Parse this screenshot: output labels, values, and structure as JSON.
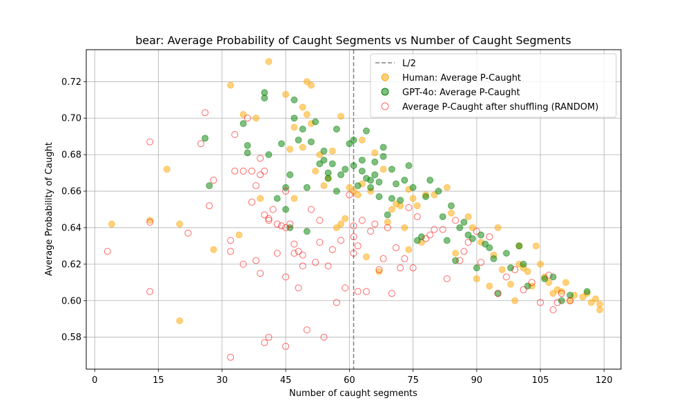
{
  "chart_data": {
    "type": "scatter",
    "title": "bear: Average Probability of Caught Segments vs Number of Caught Segments",
    "xlabel": "Number of caught segments",
    "ylabel": "Average Probability of Caught",
    "xlim": [
      -2,
      124
    ],
    "ylim": [
      0.5625,
      0.7375
    ],
    "xticks": [
      0,
      15,
      30,
      45,
      60,
      75,
      90,
      105,
      120
    ],
    "yticks": [
      0.58,
      0.6,
      0.62,
      0.64,
      0.66,
      0.68,
      0.7,
      0.72
    ],
    "grid": true,
    "legend_position": "top-right",
    "vline": {
      "x": 61,
      "label": "L/2",
      "color": "#808080",
      "style": "dashed"
    },
    "series": [
      {
        "name": "Human: Average P-Caught",
        "color": "#FFA500",
        "marker": "filled-circle",
        "x": [
          4,
          13,
          17,
          20,
          20,
          28,
          32,
          34,
          35,
          38,
          39,
          41,
          45,
          46,
          47,
          47,
          49,
          49,
          50,
          50,
          51,
          51,
          52,
          53,
          54,
          55,
          56,
          57,
          58,
          58,
          59,
          60,
          61,
          62,
          63,
          63,
          64,
          65,
          66,
          67,
          68,
          69,
          70,
          71,
          72,
          73,
          74,
          74,
          75,
          76,
          77,
          78,
          80,
          83,
          84,
          85,
          88,
          89,
          90,
          91,
          93,
          94,
          95,
          96,
          98,
          99,
          100,
          100,
          101,
          102,
          103,
          104,
          105,
          106,
          107,
          108,
          109,
          110,
          111,
          112,
          113,
          115,
          116,
          117,
          118,
          119,
          119
        ],
        "y": [
          0.642,
          0.644,
          0.672,
          0.642,
          0.589,
          0.628,
          0.718,
          0.636,
          0.702,
          0.7,
          0.656,
          0.731,
          0.713,
          0.683,
          0.695,
          0.656,
          0.706,
          0.684,
          0.72,
          0.702,
          0.718,
          0.697,
          0.671,
          0.68,
          0.663,
          0.667,
          0.682,
          0.64,
          0.642,
          0.701,
          0.645,
          0.662,
          0.66,
          0.658,
          0.664,
          0.688,
          0.624,
          0.66,
          0.681,
          0.616,
          0.672,
          0.643,
          0.65,
          0.653,
          0.652,
          0.64,
          0.628,
          0.661,
          0.656,
          0.652,
          0.632,
          0.658,
          0.658,
          0.662,
          0.648,
          0.626,
          0.646,
          0.64,
          0.612,
          0.632,
          0.608,
          0.625,
          0.64,
          0.617,
          0.609,
          0.6,
          0.63,
          0.62,
          0.618,
          0.616,
          0.608,
          0.63,
          0.62,
          0.613,
          0.61,
          0.604,
          0.606,
          0.605,
          0.61,
          0.6,
          0.603,
          0.602,
          0.604,
          0.599,
          0.601,
          0.598,
          0.595
        ]
      },
      {
        "name": "GPT-4o: Average P-Caught",
        "color": "#008000",
        "marker": "filled-circle",
        "x": [
          26,
          27,
          35,
          36,
          36,
          40,
          40,
          41,
          43,
          44,
          45,
          45,
          46,
          46,
          47,
          47,
          48,
          49,
          50,
          50,
          51,
          52,
          53,
          54,
          54,
          55,
          55,
          56,
          57,
          57,
          58,
          59,
          60,
          61,
          61,
          62,
          63,
          63,
          64,
          64,
          65,
          65,
          66,
          66,
          67,
          67,
          68,
          68,
          69,
          70,
          70,
          71,
          72,
          73,
          74,
          75,
          76,
          77,
          78,
          79,
          81,
          82,
          83,
          84,
          85,
          86,
          87,
          88,
          89,
          90,
          91,
          92,
          93,
          94,
          95,
          97,
          98,
          100,
          101,
          102,
          106,
          108,
          110,
          112,
          116
        ],
        "y": [
          0.689,
          0.663,
          0.697,
          0.685,
          0.681,
          0.714,
          0.711,
          0.68,
          0.656,
          0.686,
          0.662,
          0.65,
          0.669,
          0.64,
          0.7,
          0.71,
          0.688,
          0.694,
          0.662,
          0.638,
          0.687,
          0.698,
          0.675,
          0.682,
          0.677,
          0.67,
          0.667,
          0.675,
          0.694,
          0.66,
          0.669,
          0.672,
          0.686,
          0.688,
          0.674,
          0.663,
          0.677,
          0.671,
          0.667,
          0.693,
          0.666,
          0.662,
          0.669,
          0.676,
          0.657,
          0.665,
          0.684,
          0.679,
          0.647,
          0.672,
          0.656,
          0.664,
          0.655,
          0.666,
          0.674,
          0.662,
          0.633,
          0.635,
          0.657,
          0.666,
          0.66,
          0.646,
          0.633,
          0.652,
          0.622,
          0.64,
          0.643,
          0.636,
          0.634,
          0.618,
          0.636,
          0.631,
          0.629,
          0.623,
          0.604,
          0.626,
          0.618,
          0.63,
          0.62,
          0.608,
          0.612,
          0.613,
          0.6,
          0.603,
          0.605
        ]
      },
      {
        "name": "Average P-Caught after shuffling (RANDOM)",
        "color": "#FF0000",
        "marker": "hollow-circle",
        "x": [
          3,
          13,
          13,
          13,
          22,
          25,
          26,
          27,
          28,
          32,
          32,
          32,
          33,
          33,
          35,
          35,
          36,
          37,
          37,
          38,
          38,
          39,
          39,
          39,
          40,
          40,
          40,
          41,
          41,
          41,
          42,
          43,
          43,
          44,
          45,
          45,
          45,
          45,
          46,
          47,
          47,
          48,
          48,
          49,
          49,
          50,
          51,
          52,
          53,
          53,
          54,
          55,
          56,
          57,
          58,
          59,
          60,
          61,
          61,
          61,
          62,
          62,
          63,
          64,
          65,
          66,
          67,
          68,
          69,
          70,
          71,
          72,
          73,
          74,
          75,
          76,
          78,
          79,
          80,
          82,
          83,
          85,
          86,
          87,
          88,
          90,
          91,
          93,
          95,
          97,
          99,
          101,
          103,
          105,
          107,
          108,
          109,
          110,
          112
        ],
        "y": [
          0.627,
          0.687,
          0.643,
          0.605,
          0.637,
          0.686,
          0.703,
          0.652,
          0.666,
          0.633,
          0.627,
          0.569,
          0.691,
          0.671,
          0.62,
          0.671,
          0.7,
          0.671,
          0.654,
          0.622,
          0.663,
          0.615,
          0.669,
          0.678,
          0.577,
          0.647,
          0.671,
          0.644,
          0.645,
          0.58,
          0.65,
          0.642,
          0.626,
          0.641,
          0.575,
          0.613,
          0.66,
          0.64,
          0.642,
          0.631,
          0.626,
          0.607,
          0.627,
          0.619,
          0.625,
          0.584,
          0.65,
          0.621,
          0.644,
          0.632,
          0.58,
          0.619,
          0.628,
          0.599,
          0.633,
          0.607,
          0.658,
          0.635,
          0.641,
          0.626,
          0.63,
          0.605,
          0.644,
          0.605,
          0.638,
          0.642,
          0.617,
          0.623,
          0.64,
          0.604,
          0.629,
          0.618,
          0.623,
          0.651,
          0.618,
          0.646,
          0.634,
          0.636,
          0.639,
          0.639,
          0.612,
          0.644,
          0.622,
          0.627,
          0.632,
          0.638,
          0.621,
          0.635,
          0.604,
          0.613,
          0.617,
          0.606,
          0.61,
          0.599,
          0.614,
          0.595,
          0.599,
          0.604,
          0.6
        ]
      }
    ]
  }
}
